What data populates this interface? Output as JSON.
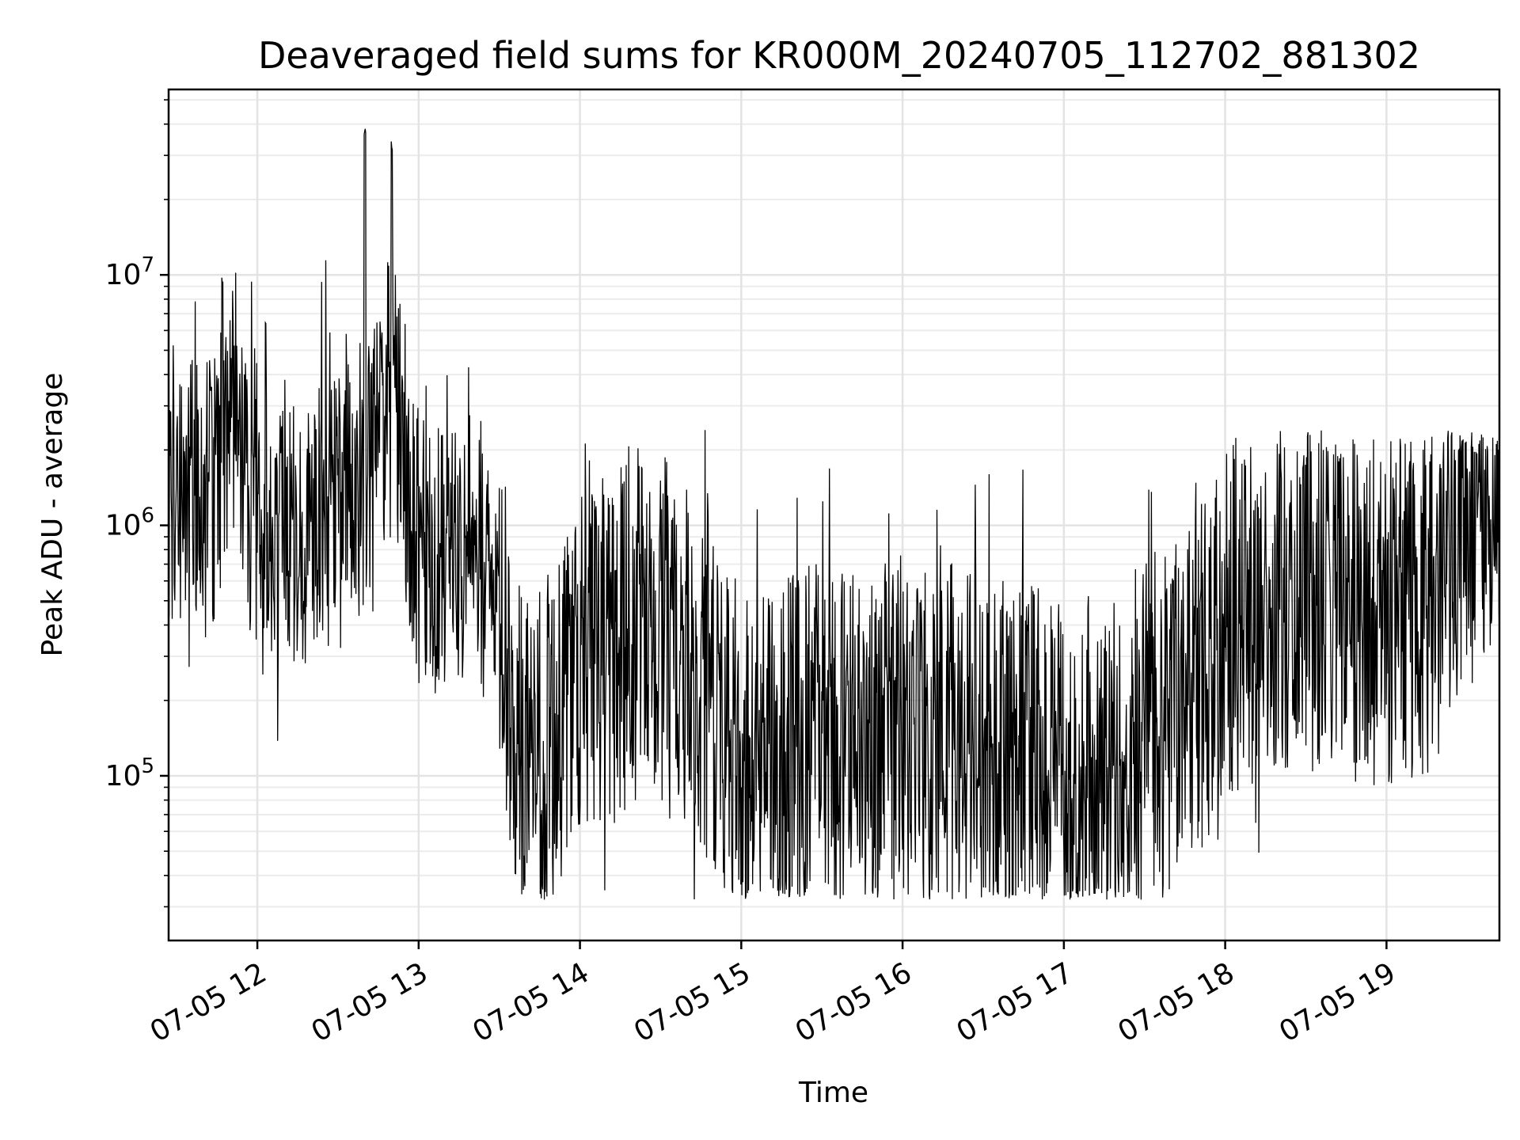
{
  "chart_data": {
    "type": "line",
    "title": "Deaveraged field sums for KR000M_20240705_112702_881302",
    "xlabel": "Time",
    "ylabel": "Peak ADU - average",
    "xscale": "time",
    "yscale": "log",
    "xlim": [
      "07-05 11:27",
      "07-05 19:42"
    ],
    "ylim": [
      22000,
      55000000
    ],
    "grid": true,
    "legend": "none",
    "line_color": "#000000",
    "x_ticks": [
      {
        "label": "07-05 12",
        "value": "07-05 12:00"
      },
      {
        "label": "07-05 13",
        "value": "07-05 13:00"
      },
      {
        "label": "07-05 14",
        "value": "07-05 14:00"
      },
      {
        "label": "07-05 15",
        "value": "07-05 15:00"
      },
      {
        "label": "07-05 16",
        "value": "07-05 16:00"
      },
      {
        "label": "07-05 17",
        "value": "07-05 17:00"
      },
      {
        "label": "07-05 18",
        "value": "07-05 18:00"
      },
      {
        "label": "07-05 19",
        "value": "07-05 19:00"
      }
    ],
    "y_ticks": [
      {
        "base": "10",
        "exp": "5",
        "value": 100000
      },
      {
        "base": "10",
        "exp": "6",
        "value": 1000000
      },
      {
        "base": "10",
        "exp": "7",
        "value": 10000000
      }
    ],
    "series": [
      {
        "x": [
          "07-05 11:30",
          "07-05 11:40",
          "07-05 11:50",
          "07-05 12:00",
          "07-05 12:10",
          "07-05 12:20",
          "07-05 12:30",
          "07-05 12:40",
          "07-05 12:50",
          "07-05 13:00",
          "07-05 13:10",
          "07-05 13:20",
          "07-05 13:30",
          "07-05 13:40",
          "07-05 13:50",
          "07-05 14:00",
          "07-05 14:15",
          "07-05 14:30",
          "07-05 14:45",
          "07-05 15:00",
          "07-05 15:15",
          "07-05 15:30",
          "07-05 15:45",
          "07-05 16:00",
          "07-05 16:15",
          "07-05 16:30",
          "07-05 16:45",
          "07-05 17:00",
          "07-05 17:15",
          "07-05 17:30",
          "07-05 17:45",
          "07-05 18:00",
          "07-05 18:15",
          "07-05 18:30",
          "07-05 18:45",
          "07-05 19:00",
          "07-05 19:15",
          "07-05 19:30",
          "07-05 19:40"
        ],
        "y": [
          1500000,
          1200000,
          2000000,
          1100000,
          900000,
          1000000,
          1100000,
          1600000,
          4000000,
          800000,
          700000,
          900000,
          500000,
          100000,
          120000,
          300000,
          350000,
          400000,
          250000,
          120000,
          120000,
          150000,
          130000,
          150000,
          150000,
          130000,
          120000,
          100000,
          90000,
          150000,
          180000,
          400000,
          500000,
          500000,
          450000,
          450000,
          500000,
          1000000,
          1300000
        ],
        "peaks": [
          {
            "x": "07-05 11:47",
            "y": 10000000
          },
          {
            "x": "07-05 12:40",
            "y": 40000000
          },
          {
            "x": "07-05 12:50",
            "y": 35000000
          }
        ],
        "envelope_min": 32000,
        "envelope_max_late": 2400000
      }
    ]
  }
}
